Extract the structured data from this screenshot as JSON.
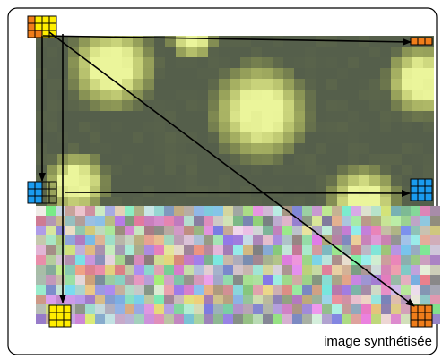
{
  "caption": "image synthétisée"
}
